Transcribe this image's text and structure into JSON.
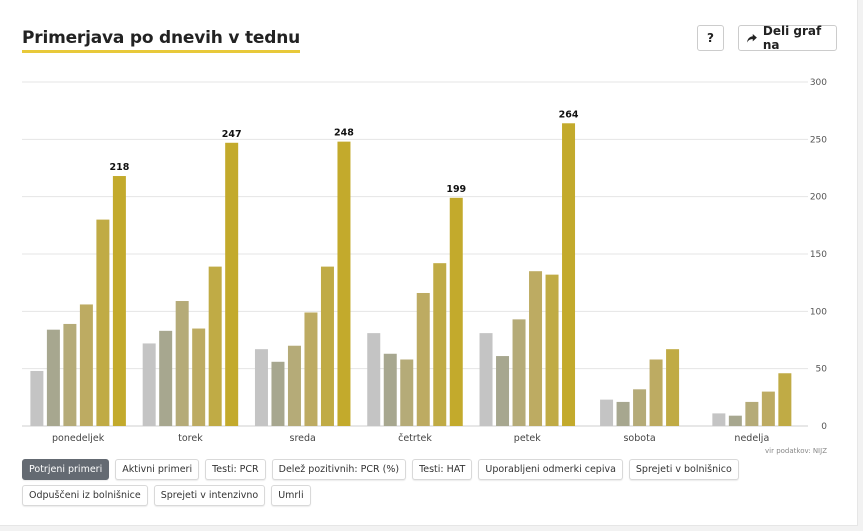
{
  "header": {
    "title": "Primerjava po dnevih v tednu",
    "help_label": "?",
    "share_label": "Deli graf na"
  },
  "source": "vir podatkov: NIJZ",
  "filters": [
    {
      "label": "Potrjeni primeri",
      "active": true
    },
    {
      "label": "Aktivni primeri",
      "active": false
    },
    {
      "label": "Testi: PCR",
      "active": false
    },
    {
      "label": "Delež pozitivnih: PCR (%)",
      "active": false
    },
    {
      "label": "Testi: HAT",
      "active": false
    },
    {
      "label": "Uporabljeni odmerki cepiva",
      "active": false
    },
    {
      "label": "Sprejeti v bolnišnico",
      "active": false
    },
    {
      "label": "Odpuščeni iz bolnišnice",
      "active": false
    },
    {
      "label": "Sprejeti v intenzivno",
      "active": false
    },
    {
      "label": "Umrli",
      "active": false
    }
  ],
  "colors": {
    "series": [
      "#c4c4c4",
      "#a7a78f",
      "#b5ab78",
      "#bdab62",
      "#c0ab45",
      "#c3aa2c"
    ],
    "title_underline": "#e8c93a",
    "active_filter": "#646a72"
  },
  "chart_data": {
    "type": "bar",
    "categories": [
      "ponedeljek",
      "torek",
      "sreda",
      "četrtek",
      "petek",
      "sobota",
      "nedelja"
    ],
    "series": [
      {
        "values": [
          48,
          72,
          67,
          81,
          81,
          23,
          11
        ]
      },
      {
        "values": [
          84,
          83,
          56,
          63,
          61,
          21,
          9
        ]
      },
      {
        "values": [
          89,
          109,
          70,
          58,
          93,
          32,
          21
        ]
      },
      {
        "values": [
          106,
          85,
          99,
          116,
          135,
          58,
          30
        ]
      },
      {
        "values": [
          180,
          139,
          139,
          142,
          132,
          67,
          46
        ]
      },
      {
        "values": [
          218,
          247,
          248,
          199,
          264,
          null,
          null
        ]
      }
    ],
    "data_labels": [
      "218",
      "247",
      "248",
      "199",
      "264",
      "",
      ""
    ],
    "y_ticks": [
      "0",
      "50",
      "100",
      "150",
      "200",
      "250",
      "300"
    ],
    "ylim": [
      0,
      300
    ],
    "y_axis_position": "right",
    "grid": true,
    "legend": "none"
  }
}
